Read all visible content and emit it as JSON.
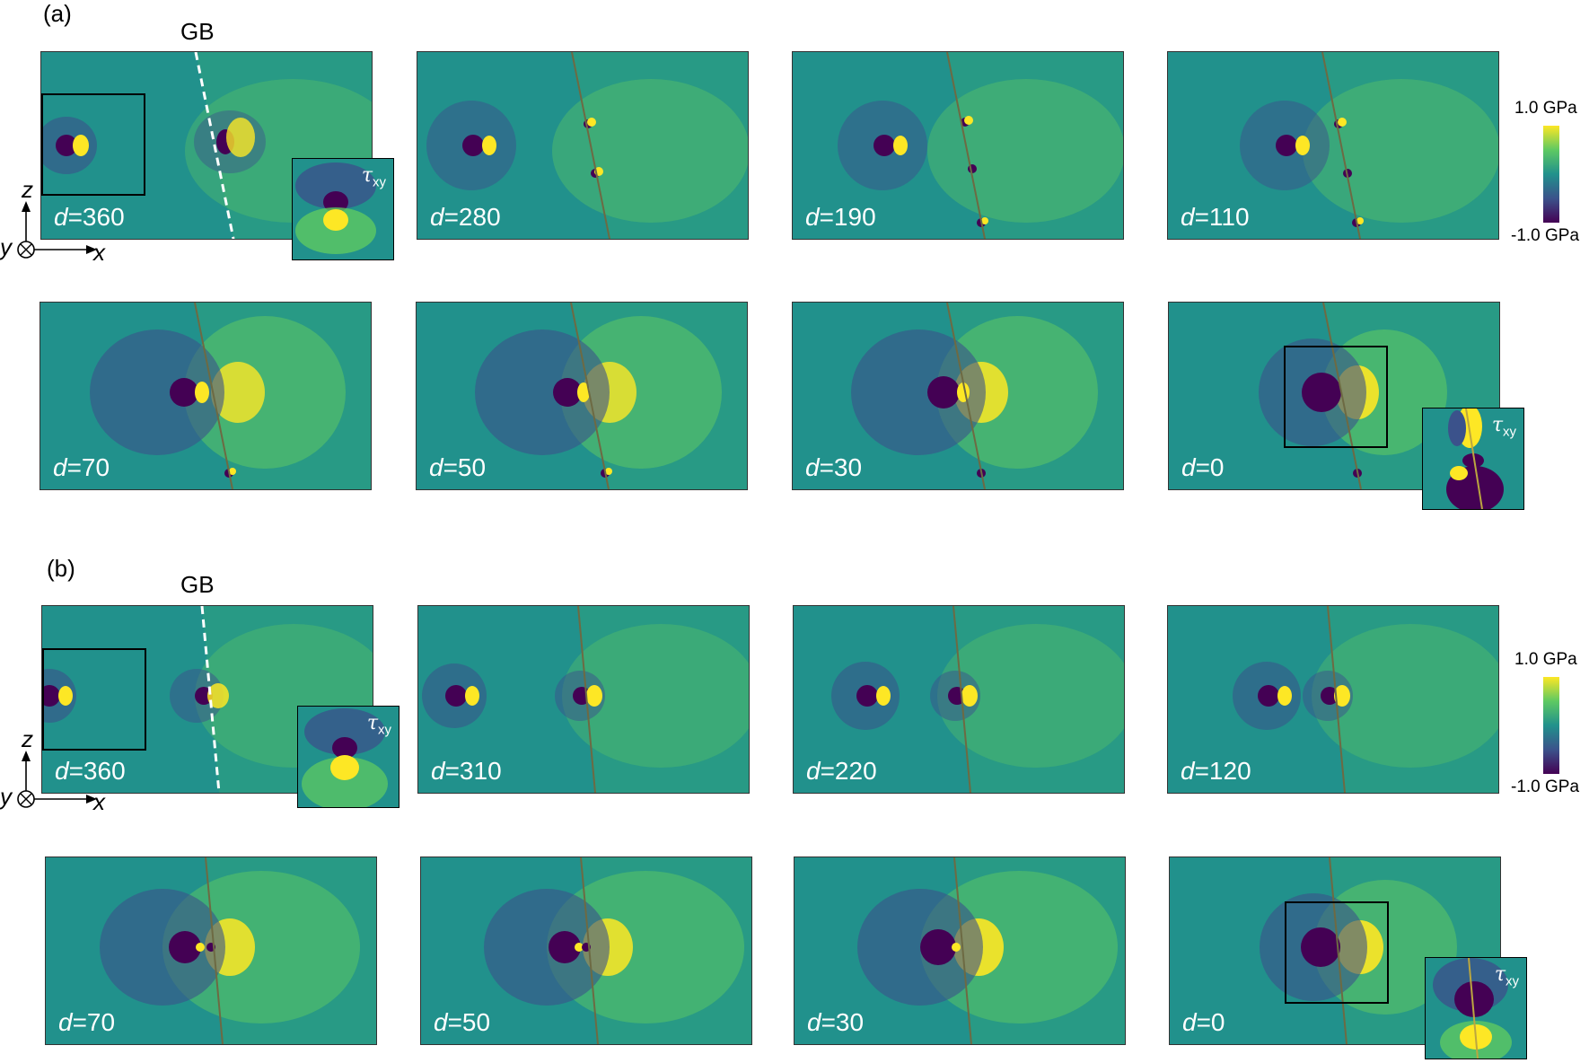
{
  "figure": {
    "colorbar_colors": [
      "#fde725",
      "#5ec962",
      "#21918c",
      "#3b528b",
      "#440154"
    ],
    "a": {
      "label": "(a)",
      "gb_label": "GB",
      "colorbar": {
        "max": "1.0 GPa",
        "min": "-1.0 GPa"
      },
      "axes": {
        "z": "z",
        "y": "y",
        "x": "x"
      },
      "inset_label": {
        "symbol": "τ",
        "subscript": "xy"
      },
      "panels": [
        {
          "d_prefix": "d",
          "d_value": "=360"
        },
        {
          "d_prefix": "d",
          "d_value": "=280"
        },
        {
          "d_prefix": "d",
          "d_value": "=190"
        },
        {
          "d_prefix": "d",
          "d_value": "=110"
        },
        {
          "d_prefix": "d",
          "d_value": "=70"
        },
        {
          "d_prefix": "d",
          "d_value": "=50"
        },
        {
          "d_prefix": "d",
          "d_value": "=30"
        },
        {
          "d_prefix": "d",
          "d_value": "=0"
        }
      ]
    },
    "b": {
      "label": "(b)",
      "gb_label": "GB",
      "colorbar": {
        "max": "1.0 GPa",
        "min": "-1.0 GPa"
      },
      "axes": {
        "z": "z",
        "y": "y",
        "x": "x"
      },
      "inset_label": {
        "symbol": "τ",
        "subscript": "xy"
      },
      "panels": [
        {
          "d_prefix": "d",
          "d_value": "=360"
        },
        {
          "d_prefix": "d",
          "d_value": "=310"
        },
        {
          "d_prefix": "d",
          "d_value": "=220"
        },
        {
          "d_prefix": "d",
          "d_value": "=120"
        },
        {
          "d_prefix": "d",
          "d_value": "=70"
        },
        {
          "d_prefix": "d",
          "d_value": "=50"
        },
        {
          "d_prefix": "d",
          "d_value": "=30"
        },
        {
          "d_prefix": "d",
          "d_value": "=0"
        }
      ]
    }
  }
}
